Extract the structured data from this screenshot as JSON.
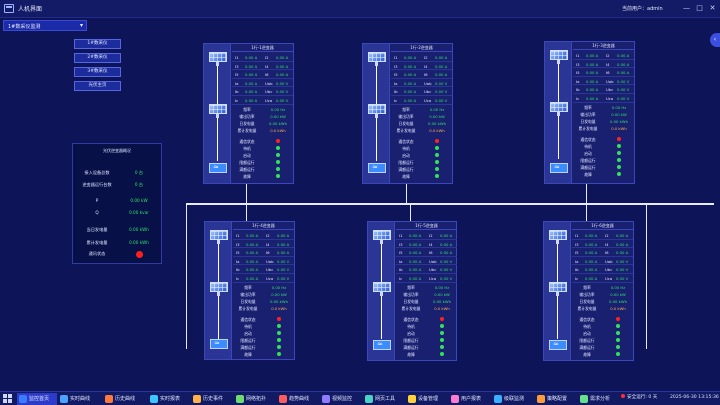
{
  "window": {
    "title": "人机界面",
    "user_text": "当前用户：admin",
    "buttons": {
      "minimize": "—",
      "maximize": "□",
      "close": "✕"
    }
  },
  "selector": {
    "value": "1#数采仪监测"
  },
  "side_buttons": [
    "1#数采仪",
    "2#数采仪",
    "3#数采仪",
    "光伏主页"
  ],
  "summary": {
    "title": "光伏逆变器概况",
    "rows": [
      {
        "label": "接入设备总数",
        "value": "0 台"
      },
      {
        "label": "逆变器运行台数",
        "value": "0 台"
      },
      {
        "label": "P",
        "value": "0.00 kW"
      },
      {
        "label": "Q",
        "value": "0.00 kvar"
      },
      {
        "label": "当日发电量",
        "value": "0.00 kWh"
      },
      {
        "label": "累计发电量",
        "value": "0.00 kWh"
      }
    ],
    "comm_label": "通讯状态"
  },
  "inverters": [
    {
      "title": "1行-1逆变器"
    },
    {
      "title": "1行-2逆变器"
    },
    {
      "title": "1行-3逆变器"
    },
    {
      "title": "1行-4逆变器"
    },
    {
      "title": "1行-5逆变器"
    },
    {
      "title": "1行-6逆变器"
    }
  ],
  "inverter_template": {
    "grid": [
      [
        "I1",
        "0.00 A",
        "I2",
        "0.00 A"
      ],
      [
        "I3",
        "0.00 A",
        "I4",
        "0.00 A"
      ],
      [
        "I5",
        "0.00 A",
        "I6",
        "0.00 A"
      ],
      [
        "Ia",
        "0.00 A",
        "Uab",
        "0.00 V"
      ],
      [
        "Ib",
        "0.00 A",
        "Ubc",
        "0.00 V"
      ],
      [
        "Ic",
        "0.00 A",
        "Uca",
        "0.00 V"
      ]
    ],
    "stats": [
      {
        "label": "频率",
        "value": "0.00 Hz",
        "tone": "g"
      },
      {
        "label": "输出功率",
        "value": "0.00 kW",
        "tone": "g"
      },
      {
        "label": "日发电量",
        "value": "0.00 kWh",
        "tone": "g"
      },
      {
        "label": "累计发电量",
        "value": "0.0 kWh",
        "tone": "o"
      }
    ],
    "status": [
      {
        "label": "通信状态",
        "led": "red"
      },
      {
        "label": "待机",
        "led": "green"
      },
      {
        "label": "启动",
        "led": "green"
      },
      {
        "label": "限额运行",
        "led": "green"
      },
      {
        "label": "满额运行",
        "led": "green"
      },
      {
        "label": "故障",
        "led": "green"
      }
    ]
  },
  "taskbar": {
    "items": [
      {
        "label": "监控首页",
        "color": "#3a7bff",
        "active": true
      },
      {
        "label": "实时曲线",
        "color": "#4aa3ff"
      },
      {
        "label": "历史曲线",
        "color": "#ff7a3a"
      },
      {
        "label": "实时报表",
        "color": "#3ac6ff"
      },
      {
        "label": "历史事件",
        "color": "#ffb347"
      },
      {
        "label": "网络拓扑",
        "color": "#6fdc6f"
      },
      {
        "label": "趋势曲线",
        "color": "#ff5b5b"
      },
      {
        "label": "视频监控",
        "color": "#8f7bff"
      },
      {
        "label": "网页工具",
        "color": "#4ad3c6"
      },
      {
        "label": "设备管理",
        "color": "#ffd23a"
      },
      {
        "label": "用户报表",
        "color": "#ff7bd1"
      },
      {
        "label": "级联监测",
        "color": "#3ab0ff"
      },
      {
        "label": "策略配置",
        "color": "#ff9b3a"
      },
      {
        "label": "需求分析",
        "color": "#66e08a"
      }
    ],
    "status": "安全运行: 0 天",
    "datetime": "2025-06-30 13:15:36"
  }
}
